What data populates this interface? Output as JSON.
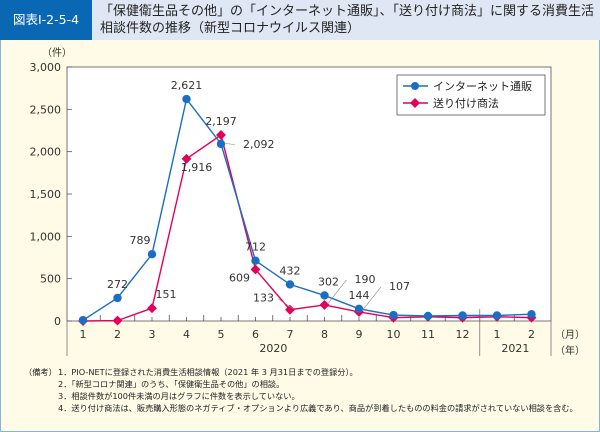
{
  "header": {
    "badge": "図表Ⅰ-2-5-4",
    "title": "「保健衛生品その他」の「インターネット通販」、「送り付け商法」に関する消費生活相談件数の推移（新型コロナウイルス関連）"
  },
  "chart_data": {
    "type": "line",
    "title": "「保健衛生品その他」の「インターネット通販」、「送り付け商法」に関する消費生活相談件数の推移（新型コロナウイルス関連）",
    "ylabel": "（件）",
    "xlabel_month": "（月）",
    "xlabel_year": "（年）",
    "ylim": [
      0,
      3000
    ],
    "yticks": [
      "0",
      "500",
      "1,000",
      "1,500",
      "2,000",
      "2,500",
      "3,000"
    ],
    "categories": [
      "1",
      "2",
      "3",
      "4",
      "5",
      "6",
      "7",
      "8",
      "9",
      "10",
      "11",
      "12",
      "1",
      "2"
    ],
    "years": [
      {
        "label": "2020",
        "from": "1",
        "to": "12"
      },
      {
        "label": "2021",
        "from": "1",
        "to": "2"
      }
    ],
    "grid": false,
    "legend": "top-right",
    "series": [
      {
        "name": "インターネット通販",
        "color": "#1a6fc4",
        "marker": "circle",
        "values": [
          10,
          272,
          789,
          2621,
          2092,
          712,
          432,
          302,
          144,
          70,
          60,
          65,
          65,
          80
        ],
        "labels": [
          "",
          "272",
          "789",
          "2,621",
          "2,092",
          "712",
          "432",
          "302",
          "144",
          "",
          "",
          "",
          "",
          ""
        ]
      },
      {
        "name": "送り付け商法",
        "color": "#e4005a",
        "marker": "diamond",
        "values": [
          0,
          5,
          151,
          1916,
          2197,
          609,
          133,
          190,
          107,
          40,
          50,
          40,
          50,
          40
        ],
        "labels": [
          "",
          "",
          "151",
          "1,916",
          "2,197",
          "609",
          "133",
          "190",
          "107",
          "",
          "",
          "",
          "",
          ""
        ]
      }
    ]
  },
  "notes": {
    "head": "（備考）",
    "items": [
      "1．PIO-NETに登録された消費生活相談情報（2021 年 3 月31日までの登録分）。",
      "2．「新型コロナ関連」のうち、「保健衛生品その他」の相談。",
      "3．相談件数が100件未満の月はグラフに件数を表示していない。",
      "4．送り付け商法は、販売購入形態のネガティブ・オプションより広義であり、商品が到着したものの料金の請求がされていない相談を含む。"
    ]
  }
}
